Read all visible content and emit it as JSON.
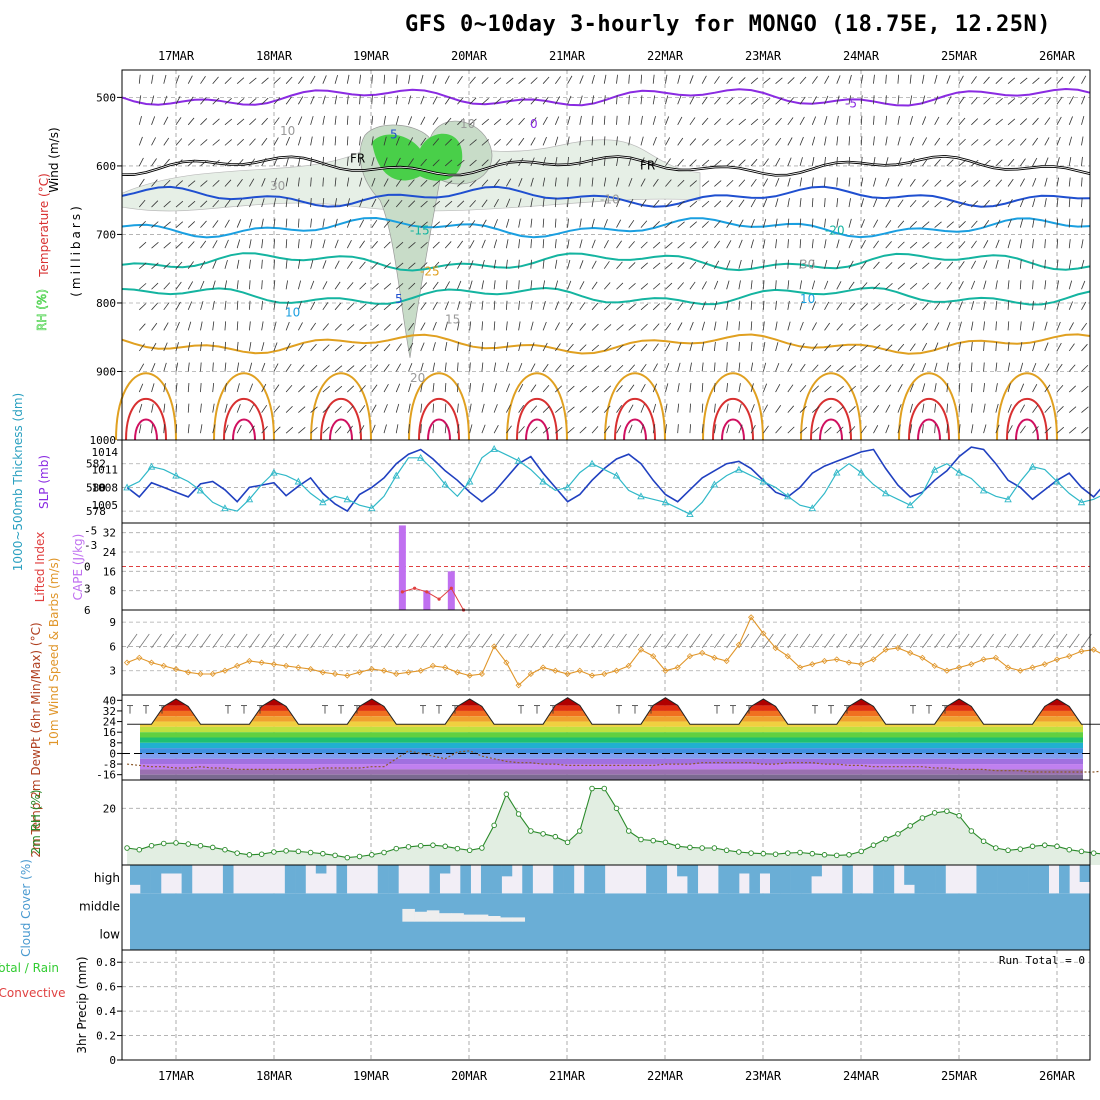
{
  "title": "GFS 0~10day 3-hourly for MONGO (18.75E, 12.25N)",
  "dates": [
    "17MAR",
    "18MAR",
    "19MAR",
    "20MAR",
    "21MAR",
    "22MAR",
    "23MAR",
    "24MAR",
    "25MAR",
    "26MAR"
  ],
  "colors": {
    "rh_green": "#33cc33",
    "temp_purple": "#8a2be2",
    "freeze": "#000000",
    "temp_blue": "#1f4fd0",
    "temp_cyan": "#1a9fe0",
    "temp_teal": "#14b4a0",
    "temp_orange": "#e0a020",
    "temp_red": "#d83030",
    "thickness": "#2040c0",
    "slp": "#30b8c8",
    "cape": "#c070f0",
    "li": "#e04040",
    "wind": "#e0962a",
    "rh2m": "#2a8a2a",
    "cloud": "#6aaed6",
    "precip_total": "#33cc33",
    "precip_conv": "#e04040"
  },
  "chart_data": [
    {
      "type": "contour",
      "name": "upper-air",
      "ylabel": "(millibars)",
      "side_labels": {
        "rh": "RH (%)",
        "temp": "Temperature (°C)",
        "wind": "Wind (m/s)"
      },
      "yticks": [
        500,
        600,
        700,
        800,
        900,
        1000
      ],
      "ylim": [
        1000,
        460
      ],
      "contour_labels": [
        "5",
        "0",
        "FR",
        "FR",
        "-5",
        "-10",
        "-15",
        "-20",
        "-25",
        "30",
        "5",
        "10",
        "15",
        "20",
        "10",
        "10",
        "30",
        "10"
      ],
      "isotherms": [
        {
          "label": "-5",
          "pressure": 500
        },
        {
          "label": "FR",
          "pressure": 600
        },
        {
          "label": "5",
          "pressure": 645
        },
        {
          "label": "10",
          "pressure": 690
        },
        {
          "label": "15",
          "pressure": 740
        },
        {
          "label": "20",
          "pressure": 790
        },
        {
          "label": "25",
          "pressure": 860
        }
      ]
    },
    {
      "type": "line",
      "name": "thickness-slp",
      "ylabel_left": "1000~500mb Thickness (dm)",
      "ylabel_right": "SLP (mb)",
      "yticks_left": [
        578,
        580,
        582
      ],
      "yticks_right": [
        1005,
        1008,
        1011,
        1014
      ],
      "thickness": [
        580.0,
        579.2,
        580.4,
        580.0,
        579.6,
        579.2,
        580.3,
        580.5,
        579.8,
        578.8,
        580.0,
        580.2,
        580.4,
        579.3,
        580.1,
        580.8,
        579.5,
        578.6,
        578.0,
        579.4,
        580.0,
        580.8,
        582.0,
        582.8,
        583.2,
        582.4,
        581.4,
        580.6,
        579.6,
        578.8,
        579.6,
        580.8,
        582.0,
        582.6,
        581.2,
        580.0,
        578.8,
        579.4,
        580.6,
        581.6,
        582.4,
        582.8,
        582.0,
        580.6,
        579.4,
        578.8,
        579.8,
        580.8,
        581.4,
        582.0,
        582.2,
        581.6,
        580.6,
        579.6,
        579.2,
        580.0,
        581.2,
        581.8,
        582.2,
        582.6,
        583.0,
        583.2,
        581.6,
        580.2,
        579.2,
        579.6,
        580.6,
        581.4,
        582.6,
        583.4,
        583.2,
        582.0,
        580.6,
        580.0,
        579.0,
        579.8,
        580.6,
        581.2,
        580.0,
        579.2,
        580.4
      ],
      "slp": [
        1008.0,
        1009.0,
        1011.5,
        1011.0,
        1010.0,
        1009.0,
        1007.5,
        1005.5,
        1004.5,
        1004.0,
        1006.0,
        1008.5,
        1010.5,
        1010.0,
        1009.0,
        1007.0,
        1005.5,
        1006.5,
        1006.0,
        1005.0,
        1004.5,
        1006.5,
        1010.0,
        1013.0,
        1013.0,
        1011.0,
        1008.5,
        1006.5,
        1009.0,
        1013.0,
        1014.5,
        1013.5,
        1012.5,
        1011.0,
        1009.0,
        1007.5,
        1008.0,
        1010.5,
        1012.0,
        1011.0,
        1010.0,
        1007.5,
        1006.5,
        1006.0,
        1005.5,
        1004.5,
        1003.5,
        1005.5,
        1008.5,
        1010.0,
        1011.0,
        1010.0,
        1009.0,
        1008.0,
        1006.5,
        1005.0,
        1004.5,
        1007.0,
        1010.5,
        1012.0,
        1010.5,
        1008.5,
        1007.0,
        1006.0,
        1005.0,
        1007.0,
        1011.0,
        1012.0,
        1010.5,
        1009.5,
        1007.5,
        1006.5,
        1006.0,
        1009.0,
        1011.5,
        1011.0,
        1009.0,
        1007.0,
        1005.5,
        1006.0,
        1007.0
      ]
    },
    {
      "type": "bar",
      "name": "cape-li",
      "ylabel_left": "Lifted Index",
      "ylabel_right": "CAPE (J/kg)",
      "yticks_left": [
        -5,
        -3,
        0,
        3,
        6
      ],
      "yticks_right": [
        8,
        16,
        24,
        32
      ],
      "cape": [
        {
          "x": 22.5,
          "v": 35
        },
        {
          "x": 24.5,
          "v": 8
        },
        {
          "x": 26.5,
          "v": 16
        }
      ],
      "lifted_index": [
        {
          "x": 22.5,
          "v": 3.5
        },
        {
          "x": 23.5,
          "v": 3.0
        },
        {
          "x": 24.5,
          "v": 3.5
        },
        {
          "x": 25.5,
          "v": 4.5
        },
        {
          "x": 26.5,
          "v": 3.0
        },
        {
          "x": 27.5,
          "v": 6.0
        }
      ]
    },
    {
      "type": "line",
      "name": "wind10m",
      "ylabel": "10m Wind Speed & Barbs (m/s)",
      "yticks": [
        3,
        6,
        9
      ],
      "values": [
        4.0,
        4.6,
        4.0,
        3.6,
        3.2,
        2.8,
        2.6,
        2.6,
        3.0,
        3.6,
        4.2,
        4.0,
        3.8,
        3.6,
        3.4,
        3.2,
        2.8,
        2.6,
        2.4,
        2.8,
        3.2,
        3.0,
        2.6,
        2.8,
        3.0,
        3.6,
        3.4,
        2.8,
        2.4,
        2.6,
        6.0,
        4.0,
        1.2,
        2.6,
        3.4,
        3.0,
        2.6,
        3.0,
        2.4,
        2.6,
        3.0,
        3.6,
        5.6,
        4.8,
        3.0,
        3.4,
        4.8,
        5.2,
        4.6,
        4.2,
        6.2,
        9.6,
        7.6,
        5.8,
        4.8,
        3.4,
        3.8,
        4.2,
        4.4,
        4.0,
        3.8,
        4.4,
        5.6,
        5.8,
        5.2,
        4.6,
        3.6,
        3.0,
        3.4,
        3.8,
        4.4,
        4.6,
        3.4,
        3.0,
        3.4,
        3.8,
        4.4,
        4.8,
        5.4,
        5.6,
        4.8,
        4.0,
        3.2,
        3.0,
        3.2,
        3.8,
        4.0,
        3.4,
        3.6,
        4.0
      ]
    },
    {
      "type": "area",
      "name": "temp2m",
      "ylabel": "2m Temp 2m DewPt (6hr Min/Max) (°C)",
      "yticks": [
        40,
        32,
        24,
        16,
        8,
        0,
        -8,
        -16
      ],
      "max_temps": [
        41,
        41,
        41,
        41,
        42,
        42,
        41,
        41,
        41
      ],
      "min_temps": [
        22,
        22,
        22,
        22,
        22,
        22,
        22,
        22,
        22
      ],
      "dewpoint": [
        -8,
        -9,
        -10,
        -10,
        -11,
        -11,
        -10,
        -11,
        -11,
        -12,
        -12,
        -12,
        -12,
        -12,
        -12,
        -12,
        -11,
        -11,
        -11,
        -11,
        -10,
        -10,
        -4,
        2,
        0,
        -2,
        -4,
        1,
        2,
        -2,
        -4,
        -6,
        -7,
        -7,
        -8,
        -8,
        -9,
        -9,
        -9,
        -9,
        -9,
        -9,
        -9,
        -9,
        -8,
        -8,
        -8,
        -7,
        -7,
        -7,
        -7,
        -7,
        -8,
        -8,
        -7,
        -7,
        -7,
        -8,
        -8,
        -9,
        -9,
        -10,
        -10,
        -10,
        -10,
        -10,
        -11,
        -11,
        -12,
        -12,
        -12,
        -13,
        -13,
        -13,
        -14,
        -14,
        -14,
        -14,
        -14,
        -14,
        -13
      ]
    },
    {
      "type": "area",
      "name": "rh2m",
      "ylabel": "2m RH (%)",
      "yticks": [
        20
      ],
      "values": [
        6.0,
        5.4,
        6.8,
        7.6,
        7.8,
        7.4,
        6.8,
        6.2,
        5.4,
        4.2,
        3.6,
        3.8,
        4.6,
        5.0,
        4.8,
        4.4,
        4.0,
        3.4,
        2.6,
        3.0,
        3.6,
        4.4,
        5.8,
        6.4,
        6.8,
        7.0,
        6.6,
        5.8,
        5.2,
        6.0,
        14.0,
        25.0,
        18.0,
        12.0,
        11.0,
        10.0,
        8.0,
        12.0,
        27.0,
        27.0,
        20.0,
        12.0,
        9.0,
        8.6,
        8.0,
        6.6,
        6.2,
        6.0,
        6.0,
        5.2,
        4.6,
        4.2,
        4.0,
        3.8,
        4.2,
        4.4,
        4.0,
        3.6,
        3.4,
        3.6,
        4.8,
        7.0,
        9.2,
        11.0,
        13.8,
        16.6,
        18.4,
        19.0,
        17.4,
        12.0,
        8.4,
        6.0,
        5.2,
        5.6,
        6.6,
        7.0,
        6.6,
        5.4,
        4.8,
        4.2,
        3.8,
        4.0,
        4.6,
        5.4,
        5.8,
        6.0,
        6.4,
        6.8,
        6.4,
        5.2,
        4.6
      ]
    },
    {
      "type": "bar",
      "name": "cloud-cover",
      "ylabel": "Cloud Cover (%)",
      "levels": [
        "high",
        "middle",
        "low"
      ],
      "high": [
        70,
        100,
        100,
        30,
        30,
        100,
        0,
        0,
        0,
        100,
        0,
        0,
        0,
        0,
        0,
        100,
        100,
        0,
        30,
        0,
        100,
        0,
        0,
        0,
        100,
        100,
        0,
        0,
        0,
        100,
        30,
        0,
        100,
        0,
        100,
        100,
        40,
        0,
        100,
        0,
        0,
        100,
        100,
        0,
        100,
        100,
        0,
        0,
        0,
        0,
        100,
        100,
        0,
        40,
        100,
        0,
        0,
        100,
        100,
        30,
        100,
        30,
        100,
        100,
        100,
        100,
        40,
        0,
        0,
        100,
        0,
        0,
        100,
        100,
        0,
        70,
        100,
        100,
        100,
        0,
        0,
        0,
        100,
        100,
        100,
        100,
        100,
        100,
        100,
        0,
        100,
        0,
        60
      ],
      "middle": [
        {
          "x": 23.0,
          "v": 45
        },
        {
          "x": 24.0,
          "v": 35
        },
        {
          "x": 25.0,
          "v": 40
        },
        {
          "x": 26.0,
          "v": 30
        },
        {
          "x": 27.0,
          "v": 30
        },
        {
          "x": 28.0,
          "v": 25
        },
        {
          "x": 29.0,
          "v": 25
        },
        {
          "x": 30.0,
          "v": 20
        },
        {
          "x": 31.0,
          "v": 15
        },
        {
          "x": 32.0,
          "v": 15
        }
      ]
    },
    {
      "type": "bar",
      "name": "precip",
      "ylabel_left": "Total / Rain",
      "ylabel_right": "Convective",
      "ylabel": "3hr Precip (mm)",
      "yticks": [
        0,
        0.2,
        0.4,
        0.6,
        0.8
      ],
      "run_total": "Run Total = 0",
      "values": []
    }
  ]
}
